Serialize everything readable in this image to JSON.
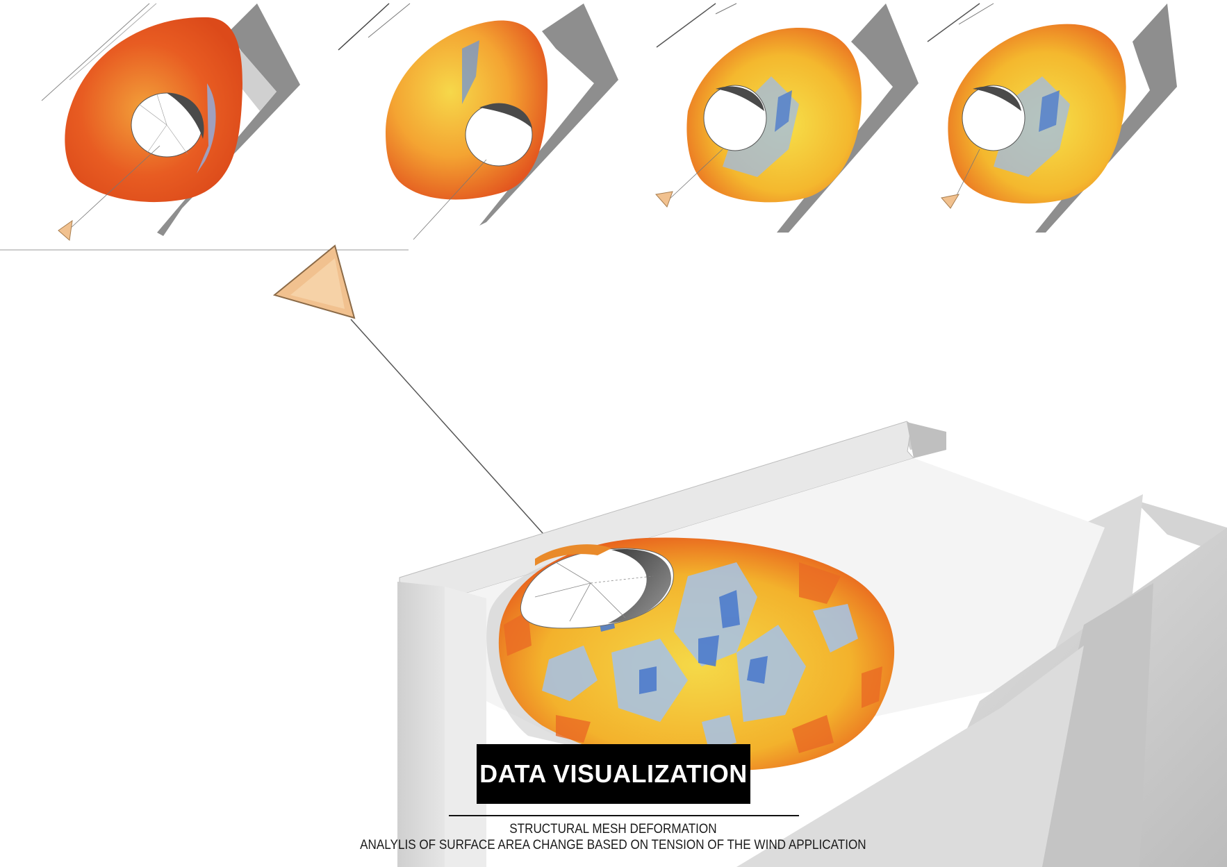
{
  "title": "DATA VISUALIZATION",
  "subtitle_line1": "STRUCTURAL MESH DEFORMATION",
  "subtitle_line2": "ANALYLIS OF SURFACE AREA CHANGE BASED ON TENSION OF THE WIND APPLICATION",
  "colors": {
    "high_tension": "#e5501c",
    "mid_tension": "#f7b52a",
    "low_mid": "#f6e04a",
    "low_tension": "#a9c5ea",
    "lowest": "#3f6ec4",
    "kite": "#f1c18f",
    "building": "#d6d6d6",
    "title_bg": "#000000"
  },
  "thumbnails": [
    {
      "stage": 1,
      "dominant": "high_tension"
    },
    {
      "stage": 2,
      "dominant": "mid_tension"
    },
    {
      "stage": 3,
      "dominant": "mixed"
    },
    {
      "stage": 4,
      "dominant": "mixed"
    }
  ]
}
